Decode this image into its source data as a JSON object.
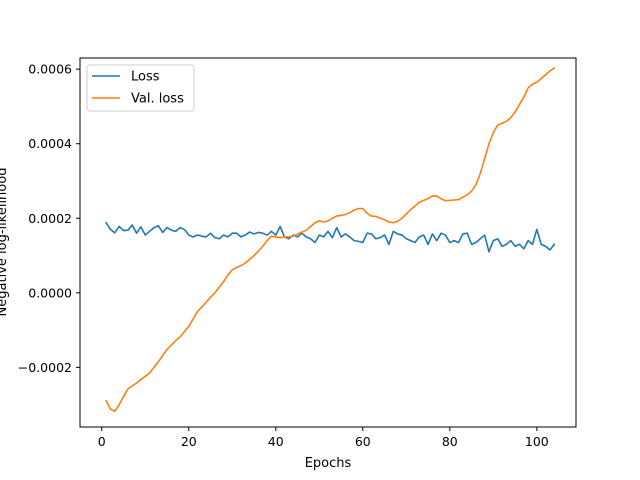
{
  "chart_data": {
    "type": "line",
    "title": "",
    "xlabel": "Epochs",
    "ylabel": "Negative log-likelihood",
    "xlim": [
      -5,
      109
    ],
    "ylim": [
      -0.00036,
      0.00063
    ],
    "xticks": [
      0,
      20,
      40,
      60,
      80,
      100
    ],
    "xtick_labels": [
      "0",
      "20",
      "40",
      "60",
      "80",
      "100"
    ],
    "yticks": [
      -0.0002,
      0.0,
      0.0002,
      0.0004,
      0.0006
    ],
    "ytick_labels": [
      "−0.0002",
      "0.0000",
      "0.0002",
      "0.0004",
      "0.0006"
    ],
    "grid": false,
    "legend_position": "top-left",
    "series": [
      {
        "name": "Loss",
        "color": "#1f77b4",
        "x": [
          1,
          2,
          3,
          4,
          5,
          6,
          7,
          8,
          9,
          10,
          11,
          12,
          13,
          14,
          15,
          16,
          17,
          18,
          19,
          20,
          21,
          22,
          23,
          24,
          25,
          26,
          27,
          28,
          29,
          30,
          31,
          32,
          33,
          34,
          35,
          36,
          37,
          38,
          39,
          40,
          41,
          42,
          43,
          44,
          45,
          46,
          47,
          48,
          49,
          50,
          51,
          52,
          53,
          54,
          55,
          56,
          57,
          58,
          59,
          60,
          61,
          62,
          63,
          64,
          65,
          66,
          67,
          68,
          69,
          70,
          71,
          72,
          73,
          74,
          75,
          76,
          77,
          78,
          79,
          80,
          81,
          82,
          83,
          84,
          85,
          86,
          87,
          88,
          89,
          90,
          91,
          92,
          93,
          94,
          95,
          96,
          97,
          98,
          99,
          100,
          101,
          102,
          103,
          104
        ],
        "y": [
          0.000188,
          0.00017,
          0.000161,
          0.000178,
          0.000167,
          0.000168,
          0.000182,
          0.00016,
          0.000177,
          0.000155,
          0.000165,
          0.000175,
          0.00018,
          0.000162,
          0.000175,
          0.000168,
          0.000165,
          0.000175,
          0.00017,
          0.000155,
          0.00015,
          0.000155,
          0.000152,
          0.00015,
          0.00016,
          0.000148,
          0.000145,
          0.000155,
          0.00015,
          0.00016,
          0.00016,
          0.00015,
          0.000155,
          0.000163,
          0.000158,
          0.000162,
          0.00016,
          0.000155,
          0.000165,
          0.000155,
          0.000178,
          0.00015,
          0.000145,
          0.000155,
          0.00015,
          0.00016,
          0.00015,
          0.000145,
          0.000135,
          0.000155,
          0.00015,
          0.000165,
          0.000148,
          0.000175,
          0.00015,
          0.000158,
          0.00015,
          0.00014,
          0.000138,
          0.000135,
          0.00016,
          0.000158,
          0.000145,
          0.000148,
          0.000155,
          0.00013,
          0.000165,
          0.000158,
          0.000155,
          0.000145,
          0.00014,
          0.000135,
          0.00015,
          0.000155,
          0.00013,
          0.000158,
          0.00014,
          0.00016,
          0.000155,
          0.000135,
          0.00014,
          0.000135,
          0.000158,
          0.00016,
          0.00013,
          0.000135,
          0.000145,
          0.000155,
          0.00011,
          0.00014,
          0.000145,
          0.000125,
          0.00013,
          0.00014,
          0.000125,
          0.00013,
          0.000118,
          0.00014,
          0.00013,
          0.00017,
          0.00013,
          0.000125,
          0.000115,
          0.00013
        ]
      },
      {
        "name": "Val. loss",
        "color": "#ff7f0e",
        "x": [
          1,
          2,
          3,
          4,
          5,
          6,
          7,
          8,
          9,
          10,
          11,
          12,
          13,
          14,
          15,
          16,
          17,
          18,
          19,
          20,
          21,
          22,
          23,
          24,
          25,
          26,
          27,
          28,
          29,
          30,
          31,
          32,
          33,
          34,
          35,
          36,
          37,
          38,
          39,
          40,
          41,
          42,
          43,
          44,
          45,
          46,
          47,
          48,
          49,
          50,
          51,
          52,
          53,
          54,
          55,
          56,
          57,
          58,
          59,
          60,
          61,
          62,
          63,
          64,
          65,
          66,
          67,
          68,
          69,
          70,
          71,
          72,
          73,
          74,
          75,
          76,
          77,
          78,
          79,
          80,
          81,
          82,
          83,
          84,
          85,
          86,
          87,
          88,
          89,
          90,
          91,
          92,
          93,
          94,
          95,
          96,
          97,
          98,
          99,
          100,
          101,
          102,
          103,
          104
        ],
        "y": [
          -0.00029,
          -0.000312,
          -0.000318,
          -0.0003,
          -0.000278,
          -0.000258,
          -0.00025,
          -0.000242,
          -0.000233,
          -0.000224,
          -0.000215,
          -0.0002,
          -0.000185,
          -0.000168,
          -0.000152,
          -0.00014,
          -0.000128,
          -0.000118,
          -0.000104,
          -9e-05,
          -7e-05,
          -5e-05,
          -3.8e-05,
          -2.5e-05,
          -1.2e-05,
          0.0,
          1.5e-05,
          3e-05,
          4.8e-05,
          6.2e-05,
          6.8e-05,
          7.3e-05,
          8e-05,
          9e-05,
          0.0001,
          0.000112,
          0.000125,
          0.00014,
          0.000152,
          0.00015,
          0.000148,
          0.00015,
          0.00015,
          0.000152,
          0.000158,
          0.000163,
          0.000168,
          0.000178,
          0.000188,
          0.000193,
          0.00019,
          0.000193,
          0.0002,
          0.000206,
          0.000208,
          0.00021,
          0.000215,
          0.000222,
          0.000226,
          0.000226,
          0.000213,
          0.000206,
          0.000205,
          0.0002,
          0.000196,
          0.00019,
          0.000188,
          0.000192,
          0.0002,
          0.000212,
          0.000223,
          0.000233,
          0.000243,
          0.000248,
          0.000253,
          0.00026,
          0.00026,
          0.000252,
          0.000247,
          0.000248,
          0.000249,
          0.00025,
          0.000257,
          0.000263,
          0.000273,
          0.00029,
          0.00032,
          0.00036,
          0.0004,
          0.00043,
          0.00045,
          0.000455,
          0.00046,
          0.00047,
          0.000485,
          0.000505,
          0.000525,
          0.00055,
          0.00056,
          0.000565,
          0.000575,
          0.000585,
          0.000595,
          0.000603
        ]
      }
    ]
  }
}
